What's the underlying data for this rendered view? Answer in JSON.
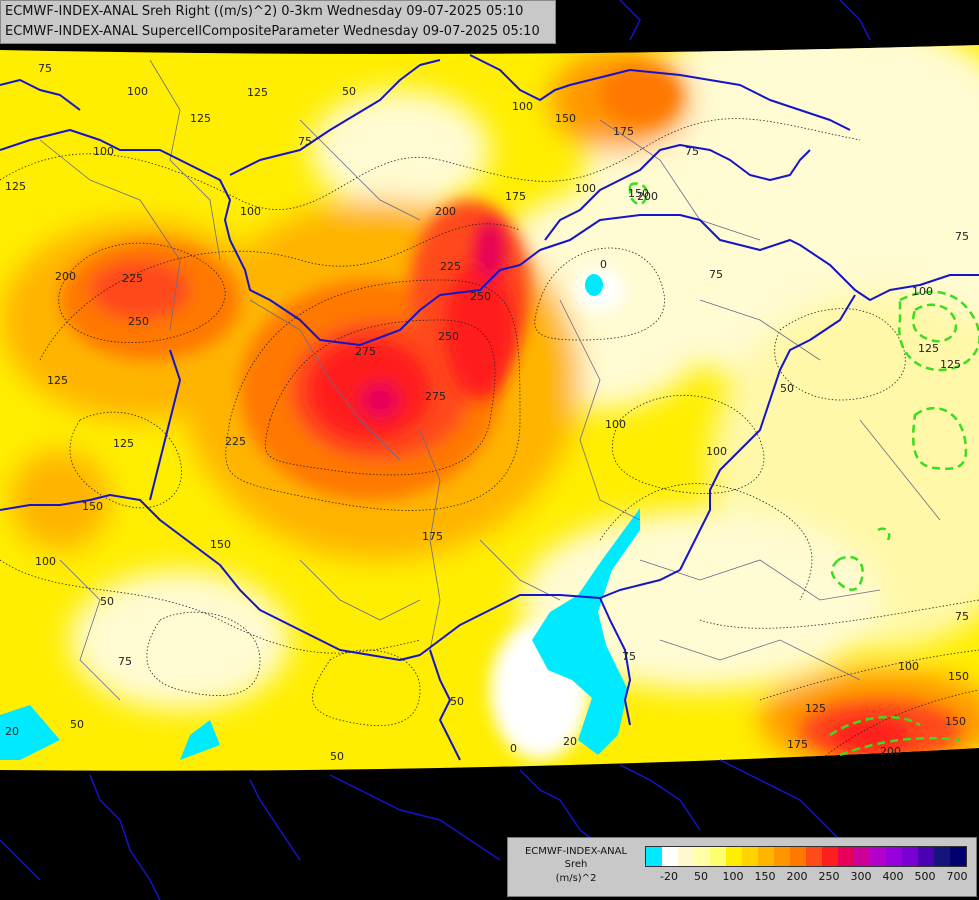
{
  "header": {
    "line1": "ECMWF-INDEX-ANAL Sreh Right ((m/s)^2) 0-3km Wednesday 09-07-2025 05:10",
    "line2": "ECMWF-INDEX-ANAL SupercellCompositeParameter Wednesday 09-07-2025 05:10"
  },
  "legend": {
    "model": "ECMWF-INDEX-ANAL",
    "field": "Sreh",
    "unit": "(m/s)^2",
    "colors": [
      "#00eaff",
      "#ffffff",
      "#fff8d0",
      "#ffffa8",
      "#ffff70",
      "#ffee00",
      "#ffd200",
      "#ffb400",
      "#ff9600",
      "#ff7800",
      "#ff4a1a",
      "#ff1e1e",
      "#e6005a",
      "#cc0099",
      "#b400cc",
      "#9600dc",
      "#7800d2",
      "#4b00b4",
      "#14147a",
      "#000070"
    ],
    "tick_labels": [
      "-20",
      "50",
      "100",
      "150",
      "200",
      "250",
      "300",
      "400",
      "500",
      "700"
    ]
  },
  "map_labels": [
    "75",
    "100",
    "125",
    "50",
    "75",
    "100",
    "125",
    "150",
    "175",
    "100",
    "75",
    "125",
    "200",
    "225",
    "250",
    "125",
    "125",
    "100",
    "150",
    "50",
    "75",
    "50",
    "20",
    "100",
    "200",
    "225",
    "250",
    "275",
    "275",
    "250",
    "225",
    "175",
    "150",
    "175",
    "200",
    "0",
    "75",
    "125",
    "100",
    "75",
    "50",
    "100",
    "100",
    "50",
    "75",
    "0",
    "20",
    "50",
    "75",
    "100",
    "125",
    "150",
    "200",
    "150",
    "175",
    "125",
    "150",
    "100"
  ],
  "colors": {
    "border": "#1414c8",
    "background": "#000000",
    "scp_contour": "#3cdc1e",
    "water": "#00eaff"
  }
}
